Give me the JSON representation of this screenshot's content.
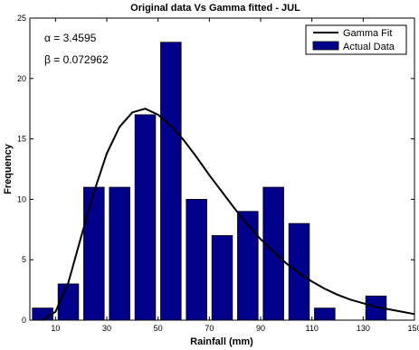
{
  "chart_data": {
    "type": "bar",
    "title": "Original data Vs Gamma fitted - JUL",
    "xlabel": "Rainfall (mm)",
    "ylabel": "Frequency",
    "xlim": [
      0,
      150
    ],
    "ylim": [
      0,
      25
    ],
    "x_ticks": [
      10,
      30,
      50,
      70,
      90,
      110,
      130,
      150
    ],
    "y_ticks": [
      0,
      5,
      10,
      15,
      20,
      25
    ],
    "grid": false,
    "legend_position": "top-right",
    "bar_width": 8,
    "bar_color": "#00008b",
    "series": [
      {
        "name": "Actual Data",
        "type": "bar",
        "x": [
          5,
          15,
          25,
          35,
          45,
          55,
          65,
          75,
          85,
          95,
          105,
          115,
          125,
          135
        ],
        "values": [
          1,
          3,
          11,
          11,
          17,
          23,
          10,
          7,
          9,
          11,
          8,
          1,
          0,
          2
        ]
      },
      {
        "name": "Gamma Fit",
        "type": "line",
        "color": "#000000",
        "alpha": 3.4595,
        "beta": 0.072962,
        "x": [
          5,
          10,
          15,
          20,
          25,
          30,
          35,
          40,
          45,
          50,
          55,
          60,
          65,
          70,
          75,
          80,
          85,
          90,
          95,
          100,
          105,
          110,
          115,
          120,
          125,
          130,
          135,
          140,
          145,
          150
        ],
        "values": [
          0.0,
          0.7,
          3.1,
          6.9,
          10.6,
          13.8,
          16.0,
          17.2,
          17.5,
          17.0,
          16.1,
          14.9,
          13.5,
          12.0,
          10.6,
          9.2,
          7.9,
          6.7,
          5.7,
          4.7,
          3.9,
          3.2,
          2.6,
          2.1,
          1.7,
          1.4,
          1.1,
          0.9,
          0.7,
          0.5
        ]
      }
    ],
    "annotations": [
      "α = 3.4595",
      "β = 0.072962"
    ]
  }
}
